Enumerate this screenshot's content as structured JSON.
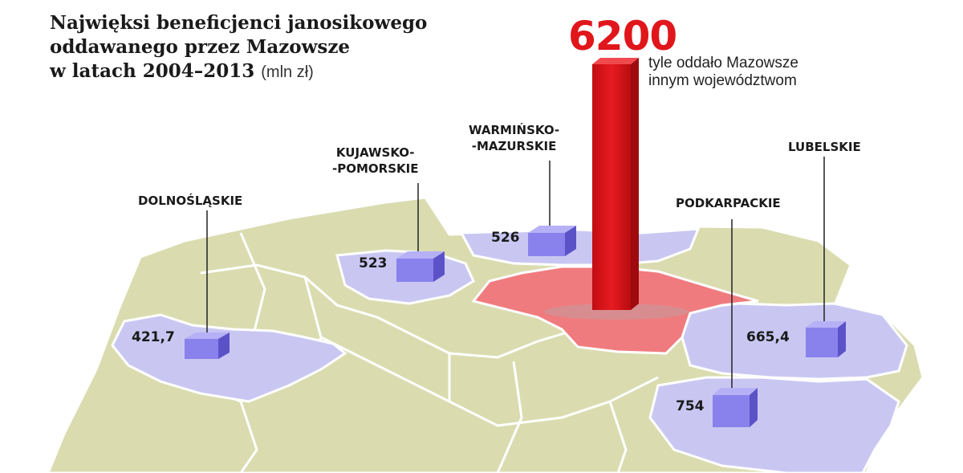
{
  "title": {
    "line1": "Najwięksi beneficjenci janosikowego",
    "line2": "oddawanego przez Mazowsze",
    "line3": "w latach 2004–2013",
    "unit": "(mln zł)"
  },
  "total": {
    "value": "6200",
    "note_line1": "tyle oddało Mazowsze",
    "note_line2": "innym województwom"
  },
  "regions": [
    {
      "key": "dolnoslaskie",
      "name_lines": [
        "DOLNOŚLĄSKIE"
      ],
      "value": "421,7"
    },
    {
      "key": "kujawsko-pomorskie",
      "name_lines": [
        "KUJAWSKO-",
        "-POMORSKIE"
      ],
      "value": "523"
    },
    {
      "key": "warminsko-mazurskie",
      "name_lines": [
        "WARMIŃSKO-",
        "-MAZURSKIE"
      ],
      "value": "526"
    },
    {
      "key": "podkarpackie",
      "name_lines": [
        "PODKARPACKIE"
      ],
      "value": "754"
    },
    {
      "key": "lubelskie",
      "name_lines": [
        "LUBELSKIE"
      ],
      "value": "665,4"
    }
  ],
  "colors": {
    "map_base": "#dadcb0",
    "region_border": "#ffffff",
    "beneficiary_region": "#c9c7f2",
    "mazowsze_region": "#f07b7e",
    "bar_red": "#e0161b",
    "box_purple": "#8a82ec"
  }
}
